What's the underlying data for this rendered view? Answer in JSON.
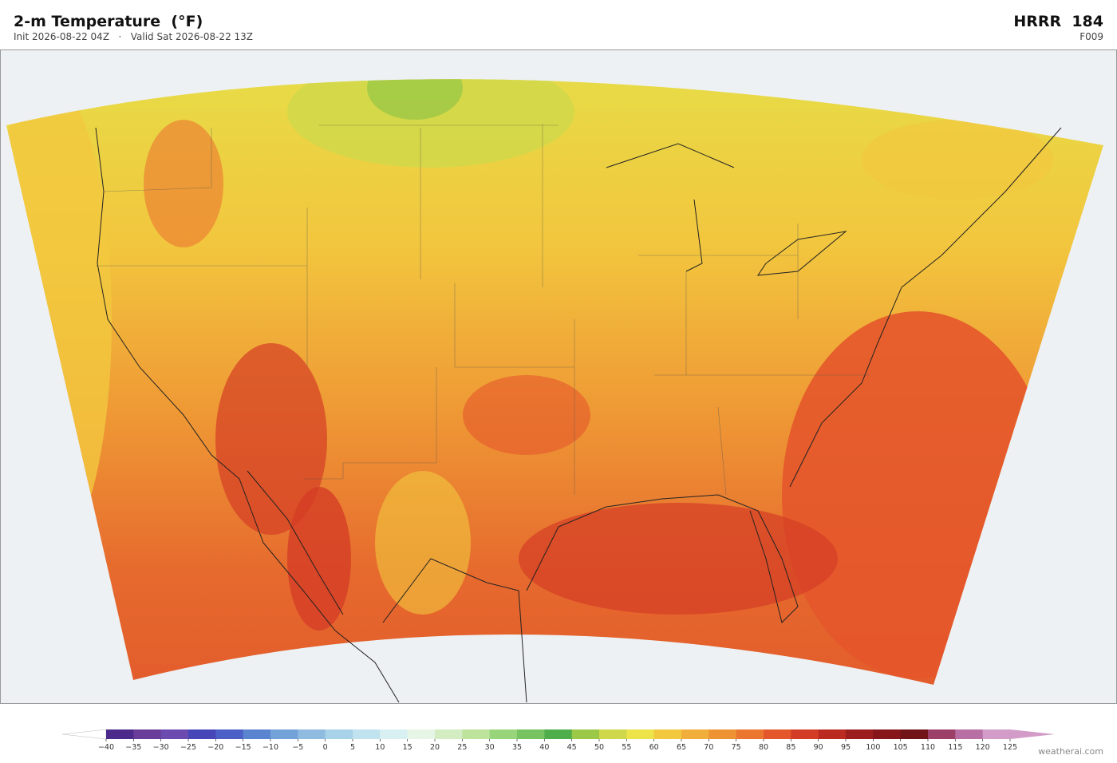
{
  "header": {
    "title": "2-m Temperature  (°F)",
    "subtitle": "Init 2026-08-22 04Z   ·   Valid Sat 2026-08-22 13Z",
    "model": "HRRR  184",
    "forecast_hour": "F009"
  },
  "colorbar": {
    "ticks": [
      {
        "value": -40,
        "label": "−40"
      },
      {
        "value": -35,
        "label": "−35"
      },
      {
        "value": -30,
        "label": "−30"
      },
      {
        "value": -25,
        "label": "−25"
      },
      {
        "value": -20,
        "label": "−20"
      },
      {
        "value": -15,
        "label": "−15"
      },
      {
        "value": -10,
        "label": "−10"
      },
      {
        "value": -5,
        "label": "−5"
      },
      0,
      5,
      10,
      15,
      20,
      25,
      30,
      35,
      40,
      45,
      50,
      55,
      60,
      65,
      70,
      75,
      80,
      85,
      90,
      95,
      100,
      105,
      110,
      115,
      120,
      125
    ],
    "colors": [
      "#4b2a8c",
      "#6a3d9a",
      "#6b4bb0",
      "#4746b8",
      "#4b5fc6",
      "#5b84d0",
      "#73a2d9",
      "#8fbbe0",
      "#a8d2e8",
      "#c0e3ef",
      "#d9f0f2",
      "#e6f5e6",
      "#d3ecc1",
      "#bde39c",
      "#98d57a",
      "#77c35f",
      "#4fae4a",
      "#9bc846",
      "#cfd84a",
      "#ede44a",
      "#f2c83e",
      "#f1ae3a",
      "#ee9334",
      "#eb7630",
      "#e4572b",
      "#d43d25",
      "#bb2a20",
      "#9b1d1d",
      "#86161a",
      "#701418",
      "#9c4068",
      "#b86fa3",
      "#d39cc8"
    ],
    "under_color": "#ffffff",
    "over_color": "#d39cc8"
  },
  "credit": "weatherai.com"
}
